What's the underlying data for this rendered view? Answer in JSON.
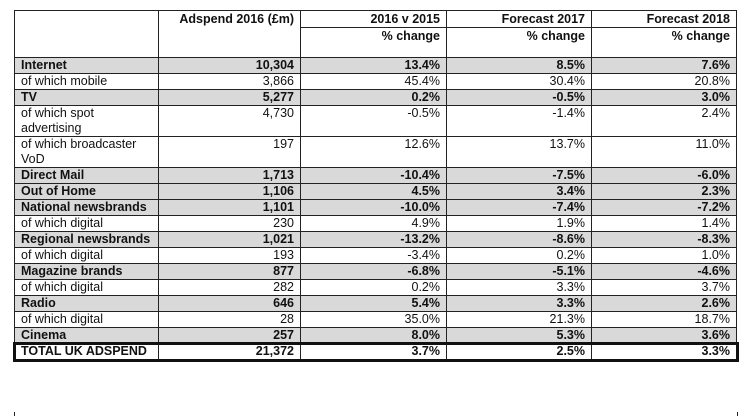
{
  "header": {
    "col1": "Adspend 2016 (£m)",
    "col2_top": "2016 v 2015",
    "col2_sub": "% change",
    "col3_top": "Forecast 2017",
    "col3_sub": "% change",
    "col4_top": "Forecast 2018",
    "col4_sub": "% change"
  },
  "rows": [
    {
      "label": "Internet",
      "adspend": "10,304",
      "chg2016": "13.4%",
      "f2017": "8.5%",
      "f2018": "7.6%",
      "main": true
    },
    {
      "label": "of which mobile",
      "adspend": "3,866",
      "chg2016": "45.4%",
      "f2017": "30.4%",
      "f2018": "20.8%",
      "main": false
    },
    {
      "label": "TV",
      "adspend": "5,277",
      "chg2016": "0.2%",
      "f2017": "-0.5%",
      "f2018": "3.0%",
      "main": true
    },
    {
      "label": "of which spot advertising",
      "adspend": "4,730",
      "chg2016": "-0.5%",
      "f2017": "-1.4%",
      "f2018": "2.4%",
      "main": false
    },
    {
      "label": "of which broadcaster VoD",
      "adspend": "197",
      "chg2016": "12.6%",
      "f2017": "13.7%",
      "f2018": "11.0%",
      "main": false
    },
    {
      "label": "Direct Mail",
      "adspend": "1,713",
      "chg2016": "-10.4%",
      "f2017": "-7.5%",
      "f2018": "-6.0%",
      "main": true
    },
    {
      "label": "Out of Home",
      "adspend": "1,106",
      "chg2016": "4.5%",
      "f2017": "3.4%",
      "f2018": "2.3%",
      "main": true
    },
    {
      "label": "National newsbrands",
      "adspend": "1,101",
      "chg2016": "-10.0%",
      "f2017": "-7.4%",
      "f2018": "-7.2%",
      "main": true
    },
    {
      "label": "of which digital",
      "adspend": "230",
      "chg2016": "4.9%",
      "f2017": "1.9%",
      "f2018": "1.4%",
      "main": false
    },
    {
      "label": "Regional newsbrands",
      "adspend": "1,021",
      "chg2016": "-13.2%",
      "f2017": "-8.6%",
      "f2018": "-8.3%",
      "main": true
    },
    {
      "label": "of which digital",
      "adspend": "193",
      "chg2016": "-3.4%",
      "f2017": "0.2%",
      "f2018": "1.0%",
      "main": false
    },
    {
      "label": "Magazine brands",
      "adspend": "877",
      "chg2016": "-6.8%",
      "f2017": "-5.1%",
      "f2018": "-4.6%",
      "main": true
    },
    {
      "label": "of which digital",
      "adspend": "282",
      "chg2016": "0.2%",
      "f2017": "3.3%",
      "f2018": "3.7%",
      "main": false
    },
    {
      "label": "Radio",
      "adspend": "646",
      "chg2016": "5.4%",
      "f2017": "3.3%",
      "f2018": "2.6%",
      "main": true
    },
    {
      "label": "of which digital",
      "adspend": "28",
      "chg2016": "35.0%",
      "f2017": "21.3%",
      "f2018": "18.7%",
      "main": false
    },
    {
      "label": "Cinema",
      "adspend": "257",
      "chg2016": "8.0%",
      "f2017": "5.3%",
      "f2018": "3.6%",
      "main": true
    }
  ],
  "total": {
    "label": "TOTAL UK ADSPEND",
    "adspend": "21,372",
    "chg2016": "3.7%",
    "f2017": "2.5%",
    "f2018": "3.3%"
  }
}
